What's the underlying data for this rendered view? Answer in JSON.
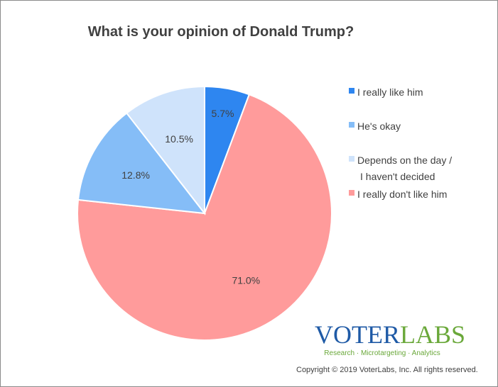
{
  "chart_data": {
    "type": "pie",
    "title": "What is your opinion of Donald Trump?",
    "slices": [
      {
        "label": "I really like him",
        "value": 5.7,
        "display": "5.7%",
        "color": "#2e86f0"
      },
      {
        "label": "He's okay",
        "value": 12.8,
        "display": "12.8%",
        "color": "#85bdf7"
      },
      {
        "label": "Depends on the day / I haven't decided",
        "label_lines": [
          "Depends on the day /",
          "I haven't decided"
        ],
        "value": 10.5,
        "display": "10.5%",
        "color": "#cfe3fb"
      },
      {
        "label": "I really don't like him",
        "value": 71.0,
        "display": "71.0%",
        "color": "#ff9b9b"
      }
    ],
    "draw_order": [
      0,
      3,
      1,
      2
    ],
    "start_angle": "12 o'clock",
    "direction": "clockwise",
    "legend_position": "right"
  },
  "branding": {
    "logo_part1": "VOTER",
    "logo_part2": "LABS",
    "tagline": "Research · Microtargeting · Analytics",
    "copyright": "Copyright © 2019 VoterLabs, Inc. All rights reserved."
  }
}
